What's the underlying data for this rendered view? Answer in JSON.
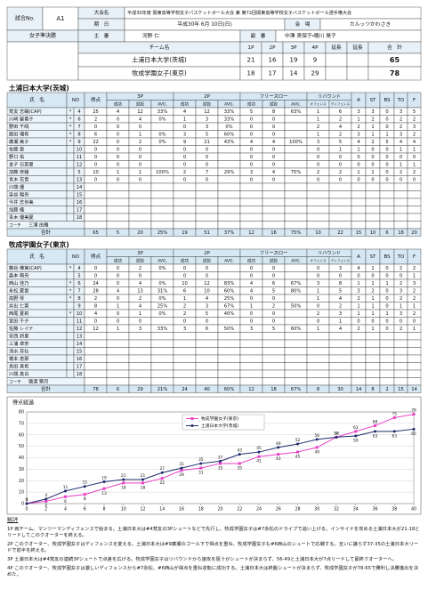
{
  "header": {
    "match_no_label": "試合No.",
    "match_no": "A1",
    "tournament_label": "大会名",
    "tournament": "平成30年度 関東高等学校女子バスケットボール大会 兼 第72回関東高等学校女子バスケットボール選手権大会",
    "date_label": "期　日",
    "date": "平成30年 6月 10日(日)",
    "venue_label": "会　場",
    "venue": "カルッツかわさき",
    "round": "女子準決勝",
    "referee_label": "主　審",
    "referee": "河野 仁",
    "umpire_label": "副　審",
    "umpires": "中澤 美保子・穂川 晃子",
    "team_label": "チーム名",
    "period_labels": [
      "1P",
      "2P",
      "3P",
      "4P",
      "延長",
      "延長",
      "合　計"
    ],
    "scores": [
      {
        "team": "土浦日本大学(茨城)",
        "periods": [
          21,
          16,
          19,
          9,
          null,
          null
        ],
        "total": 65
      },
      {
        "team": "牧成学園女子(東京)",
        "periods": [
          18,
          17,
          14,
          29,
          null,
          null
        ],
        "total": 78
      }
    ]
  },
  "stats_header": {
    "name": "氏　名",
    "no": "NO",
    "pts": "得点",
    "groups": [
      "3P",
      "2P",
      "フリースロー"
    ],
    "sub": [
      "成功",
      "試投",
      "AVG."
    ],
    "rebound": "リバウンド",
    "rebound_sub": [
      "オフェンス",
      "ディフェンス"
    ],
    "tail": [
      "A",
      "ST",
      "BS",
      "TO",
      "F"
    ],
    "coach_label": "コーチ",
    "total_label": "合計"
  },
  "teams": [
    {
      "name": "土浦日本大学(茨城)",
      "coach": "三浦 由雅",
      "players": [
        [
          "梵友 志織(CAP)",
          "*",
          4,
          25,
          4,
          12,
          "33%",
          4,
          12,
          "33%",
          5,
          8,
          "63%",
          1,
          6,
          3,
          3,
          0,
          3,
          5
        ],
        [
          "川﨑 聖香子",
          "*",
          6,
          2,
          0,
          4,
          "0%",
          1,
          3,
          "33%",
          0,
          0,
          null,
          1,
          2,
          1,
          2,
          0,
          2,
          2
        ],
        [
          "野田 千晴",
          "*",
          7,
          0,
          0,
          0,
          null,
          0,
          3,
          "0%",
          0,
          0,
          null,
          2,
          4,
          2,
          1,
          0,
          2,
          3
        ],
        [
          "飯田 瑠希",
          "*",
          8,
          6,
          0,
          1,
          "0%",
          3,
          5,
          "60%",
          0,
          0,
          null,
          1,
          2,
          3,
          1,
          1,
          3,
          2
        ],
        [
          "廣瀬 美子",
          "*",
          9,
          22,
          0,
          2,
          "0%",
          9,
          21,
          "43%",
          4,
          4,
          "100%",
          3,
          5,
          4,
          2,
          5,
          4,
          4
        ],
        [
          "佐藤 愛",
          null,
          10,
          0,
          0,
          0,
          null,
          0,
          0,
          null,
          0,
          0,
          null,
          0,
          1,
          1,
          0,
          0,
          1,
          1
        ],
        [
          "野口 佑",
          null,
          11,
          0,
          0,
          0,
          null,
          0,
          0,
          null,
          0,
          0,
          null,
          0,
          0,
          0,
          0,
          0,
          0,
          0
        ],
        [
          "金子 日菜里",
          null,
          12,
          0,
          0,
          0,
          null,
          0,
          0,
          null,
          0,
          0,
          null,
          0,
          0,
          0,
          0,
          0,
          1,
          1
        ],
        [
          "加藤 奈緒",
          null,
          5,
          10,
          1,
          1,
          "100%",
          2,
          7,
          "29%",
          3,
          4,
          "75%",
          2,
          2,
          1,
          1,
          0,
          2,
          2
        ],
        [
          "青木 花音",
          null,
          13,
          0,
          0,
          0,
          null,
          0,
          0,
          null,
          0,
          0,
          null,
          0,
          0,
          0,
          0,
          0,
          0,
          0
        ],
        [
          "川端 優",
          null,
          14
        ],
        [
          "染谷 陽央",
          null,
          15
        ],
        [
          "今井 志歩美",
          null,
          16
        ],
        [
          "加藤 楓",
          null,
          17
        ],
        [
          "青木 優美夏",
          null,
          18
        ]
      ],
      "totals": [
        65,
        5,
        20,
        "25%",
        19,
        51,
        "37%",
        12,
        16,
        "75%",
        10,
        22,
        15,
        10,
        6,
        18,
        20
      ]
    },
    {
      "name": "牧成学園女子(東京)",
      "coach": "猿渡 繁月",
      "players": [
        [
          "藤谷 佛実(CAP)",
          "*",
          4,
          0,
          0,
          2,
          "0%",
          0,
          0,
          null,
          0,
          0,
          null,
          0,
          3,
          4,
          1,
          0,
          2,
          2
        ],
        [
          "森本 萌央",
          null,
          5,
          0,
          0,
          0,
          null,
          0,
          0,
          null,
          0,
          0,
          null,
          0,
          0,
          0,
          0,
          0,
          0,
          1
        ],
        [
          "西山 佳乃",
          "*",
          6,
          24,
          0,
          4,
          "0%",
          10,
          12,
          "83%",
          4,
          6,
          "67%",
          3,
          8,
          1,
          1,
          1,
          2,
          3
        ],
        [
          "永松 夏愛",
          "*",
          7,
          28,
          4,
          13,
          "31%",
          6,
          10,
          "60%",
          4,
          5,
          "80%",
          1,
          5,
          3,
          2,
          0,
          3,
          2
        ],
        [
          "高野 琴",
          "*",
          8,
          2,
          0,
          2,
          "0%",
          1,
          4,
          "25%",
          0,
          0,
          null,
          1,
          4,
          2,
          1,
          0,
          2,
          2
        ],
        [
          "井出 仁菜",
          null,
          9,
          8,
          1,
          4,
          "25%",
          2,
          3,
          "67%",
          1,
          2,
          "50%",
          0,
          2,
          1,
          1,
          0,
          1,
          1
        ],
        [
          "西尾 夏莉",
          "*",
          10,
          4,
          0,
          1,
          "0%",
          2,
          5,
          "40%",
          0,
          0,
          null,
          2,
          3,
          1,
          1,
          1,
          3,
          2
        ],
        [
          "宮田 千子",
          null,
          11,
          0,
          0,
          0,
          null,
          0,
          0,
          null,
          0,
          0,
          null,
          0,
          1,
          0,
          0,
          0,
          0,
          0
        ],
        [
          "佐藤 レイナ",
          null,
          12,
          12,
          1,
          3,
          "33%",
          3,
          6,
          "50%",
          3,
          5,
          "60%",
          1,
          4,
          2,
          1,
          0,
          2,
          1
        ],
        [
          "安西 詩里",
          null,
          13
        ],
        [
          "三浦 卓奈",
          null,
          14
        ],
        [
          "清水 芳壮",
          null,
          15
        ],
        [
          "橋本 恵那",
          null,
          16
        ],
        [
          "島田 真希",
          null,
          17
        ],
        [
          "川端 真白",
          null,
          18
        ]
      ],
      "totals": [
        78,
        6,
        29,
        "21%",
        24,
        40,
        "60%",
        12,
        18,
        "67%",
        8,
        30,
        14,
        8,
        2,
        15,
        14
      ]
    }
  ],
  "chart_data": {
    "type": "line",
    "title": "得点経過",
    "x": [
      0,
      2,
      4,
      6,
      8,
      10,
      12,
      14,
      16,
      18,
      20,
      22,
      24,
      26,
      28,
      30,
      32,
      34,
      36,
      38,
      40
    ],
    "series": [
      {
        "name": "牧成学園女子(東京)",
        "color": "#e83fc6",
        "values": [
          0,
          2,
          6,
          8,
          13,
          18,
          18,
          22,
          29,
          31,
          35,
          35,
          41,
          43,
          45,
          49,
          58,
          63,
          68,
          75,
          78
        ]
      },
      {
        "name": "土浦日本大学(茨城)",
        "color": "#1f2a6b",
        "values": [
          0,
          4,
          11,
          15,
          19,
          21,
          21,
          27,
          31,
          35,
          37,
          43,
          45,
          49,
          52,
          56,
          58,
          59,
          63,
          63,
          65
        ]
      }
    ],
    "xlim": [
      0,
      40
    ],
    "xticks": [
      0,
      2,
      4,
      6,
      8,
      10,
      12,
      14,
      16,
      18,
      20,
      22,
      24,
      26,
      28,
      30,
      32,
      34,
      36,
      38,
      40
    ],
    "ylim": [
      0,
      80
    ],
    "yticks": [
      0,
      10,
      20,
      30,
      40,
      50,
      60,
      70,
      80
    ],
    "grid": true,
    "legend": "top"
  },
  "comment": {
    "title": "総評",
    "paragraphs": [
      "1P 両チーム、マンツーマンディフェンスで始まる。土浦日本大は#4梵友の3Pシュートなどで先行し、牧成学園女子は#7永松のドライブで追い上げる。インサイドを攻める土浦日本大が21-18とリードしてこのクオーターを終える。",
      "2P このクオーター、牧成学園女子はディフェンスを変える。土浦日本大は#9廣瀬のゴール下で得点を重ね、牧成学園女子も#6西山のシュートで応戦する。互いに譲らず37-35の土浦日本大リードで前半を終える。",
      "3P 土浦日本大は#4梵友の連続3Pシュートで点差を広げる。牧成学園女子はリバウンドから速攻を狙うがシュートが決まらず、56-49と土浦日本大が7点リードして最終クオーターへ。",
      "4P このクオーター、牧成学園女子は激しいディフェンスから#7永松、#6西山が得点を重ね逆転に成功する。土浦日本大は終盤シュートが決まらず、牧成学園女子が78-65で勝利し決勝進出を決めた。"
    ]
  }
}
